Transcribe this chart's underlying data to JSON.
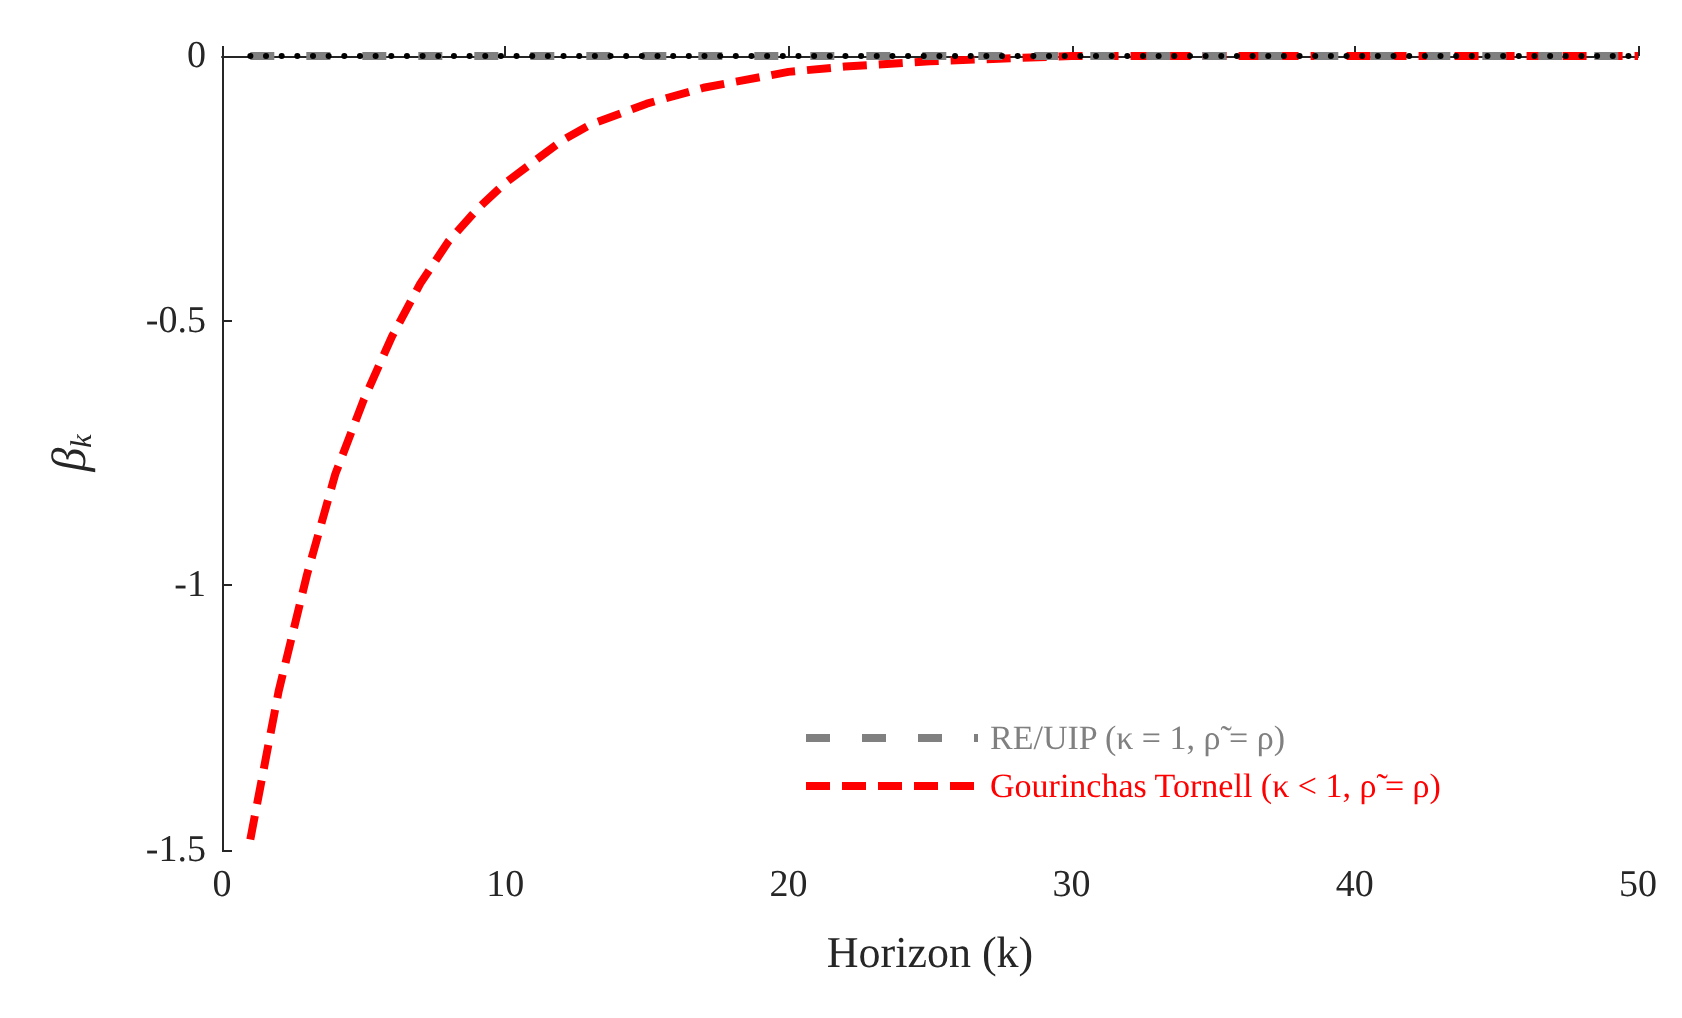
{
  "chart_data": {
    "type": "line",
    "xlabel": "Horizon (k)",
    "ylabel": "β$_{k}$",
    "xlim": [
      0,
      50
    ],
    "xticks": [
      0,
      10,
      20,
      30,
      40,
      50
    ],
    "ylim": [
      -1.5,
      0
    ],
    "yticks": [
      -1.5,
      -1,
      -0.5,
      0
    ],
    "grid": false,
    "legend": "bottom right",
    "marker": "none",
    "series": [
      {
        "name": "RE/UIP (κ = 1, ρ̃ = ρ)",
        "color": "#808080",
        "line_style": "dashed",
        "x": [
          1,
          50
        ],
        "values": [
          0,
          0
        ]
      },
      {
        "name": "Gourinchas Tornell (κ < 1, ρ̃ = ρ)",
        "color": "#ff0000",
        "line_style": "dashed",
        "x": [
          1,
          2,
          3,
          4,
          5,
          6,
          7,
          8,
          9,
          10,
          11,
          12,
          13,
          14,
          15,
          17,
          20,
          22,
          25,
          30,
          35,
          40,
          45,
          50
        ],
        "values": [
          -1.48,
          -1.2,
          -0.98,
          -0.79,
          -0.65,
          -0.53,
          -0.43,
          -0.35,
          -0.29,
          -0.24,
          -0.2,
          -0.16,
          -0.13,
          -0.11,
          -0.09,
          -0.06,
          -0.03,
          -0.02,
          -0.01,
          0,
          0,
          0,
          0,
          0
        ]
      },
      {
        "color": "#000000",
        "line_style": "dotted",
        "x": [
          1,
          50
        ],
        "values": [
          0,
          0
        ]
      }
    ]
  }
}
